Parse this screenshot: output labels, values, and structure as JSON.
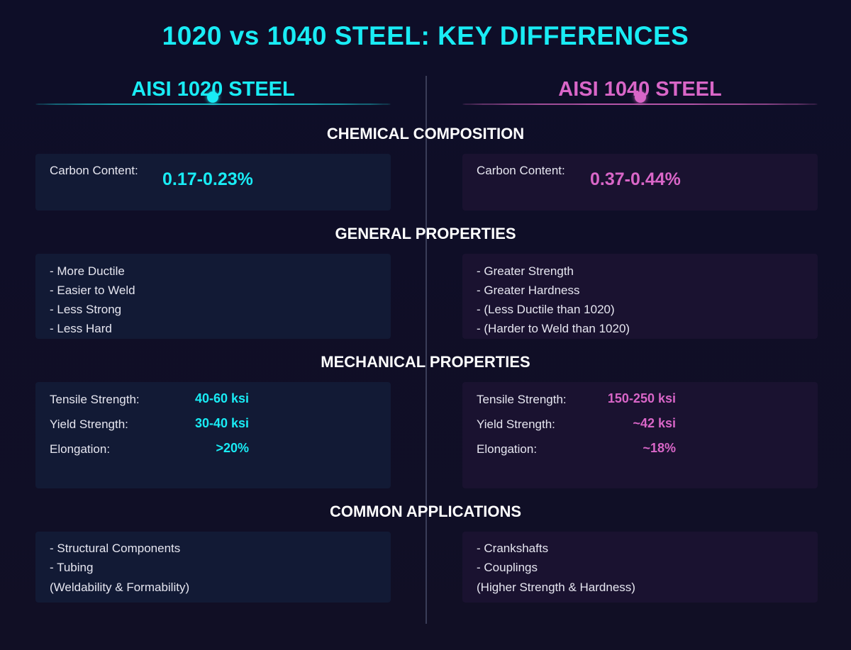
{
  "title": "1020 vs 1040 STEEL: KEY DIFFERENCES",
  "colors": {
    "left_accent": "#19ecf5",
    "right_accent": "#d966c8"
  },
  "left": {
    "heading": "AISI 1020 STEEL",
    "carbon_label": "Carbon Content:",
    "carbon_value": "0.17-0.23%",
    "general": [
      "- More Ductile",
      "- Easier to Weld",
      "- Less Strong",
      "- Less Hard"
    ],
    "mechanical": [
      {
        "label": "Tensile Strength:",
        "value": "40-60 ksi"
      },
      {
        "label": "Yield Strength:",
        "value": "30-40 ksi"
      },
      {
        "label": "Elongation:",
        "value": ">20%"
      }
    ],
    "applications": [
      "- Structural Components",
      "- Tubing",
      "(Weldability & Formability)"
    ]
  },
  "right": {
    "heading": "AISI 1040 STEEL",
    "carbon_label": "Carbon Content:",
    "carbon_value": "0.37-0.44%",
    "general": [
      "- Greater Strength",
      "- Greater Hardness",
      "- (Less Ductile than 1020)",
      "- (Harder to Weld than 1020)"
    ],
    "mechanical": [
      {
        "label": "Tensile Strength:",
        "value": "150-250 ksi"
      },
      {
        "label": "Yield Strength:",
        "value": "~42 ksi"
      },
      {
        "label": "Elongation:",
        "value": "~18%"
      }
    ],
    "applications": [
      "- Crankshafts",
      "- Couplings",
      "(Higher Strength & Hardness)"
    ]
  },
  "sections": {
    "chemical": "CHEMICAL COMPOSITION",
    "general": "GENERAL PROPERTIES",
    "mechanical": "MECHANICAL PROPERTIES",
    "applications": "COMMON APPLICATIONS"
  }
}
